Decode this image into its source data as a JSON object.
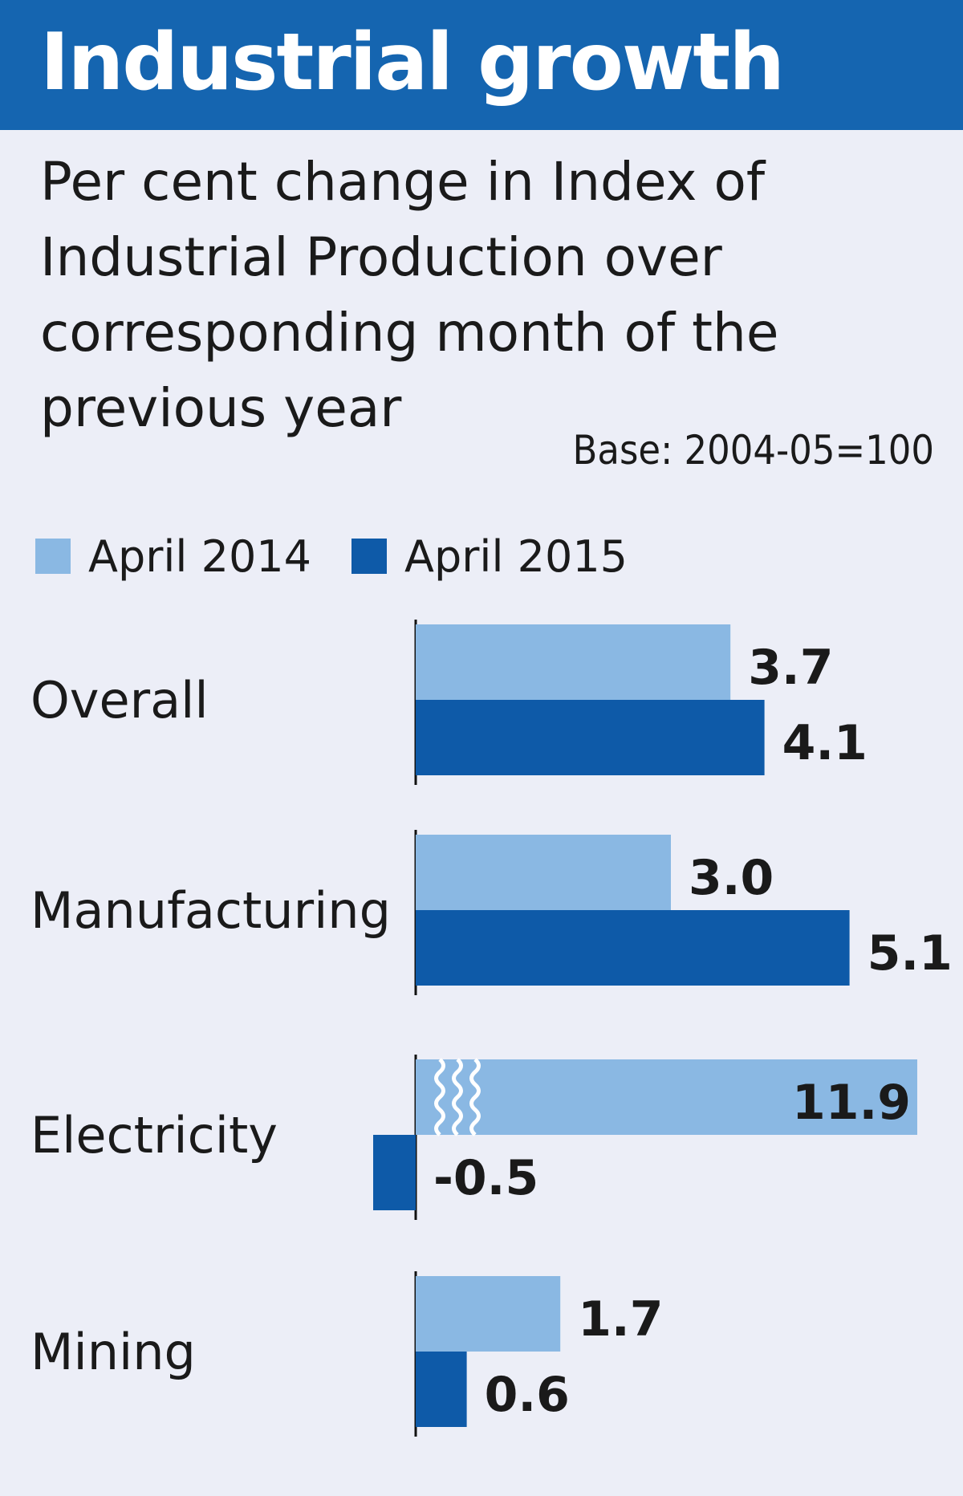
{
  "title": "Industrial growth",
  "subtitle": "Per cent change in Index of Industrial Production over corresponding month of the previous year",
  "base_note": "Base: 2004-05=100",
  "colors": {
    "header": "#1565b0",
    "series_2014": "#8ab8e3",
    "series_2015": "#0e5aa8",
    "background": "#eceef7"
  },
  "chart_data": {
    "type": "bar",
    "orientation": "horizontal",
    "categories": [
      "Overall",
      "Manufacturing",
      "Electricity",
      "Mining"
    ],
    "series": [
      {
        "name": "April 2014",
        "values": [
          3.7,
          3.0,
          11.9,
          1.7
        ]
      },
      {
        "name": "April 2015",
        "values": [
          4.1,
          5.1,
          -0.5,
          0.6
        ]
      }
    ],
    "value_labels": [
      [
        "3.7",
        "3.0",
        "11.9",
        "1.7"
      ],
      [
        "4.1",
        "5.1",
        "-0.5",
        "0.6"
      ]
    ],
    "axis_break_on": {
      "series": 0,
      "category": 2
    },
    "legend_position": "top-left",
    "grid": false
  }
}
